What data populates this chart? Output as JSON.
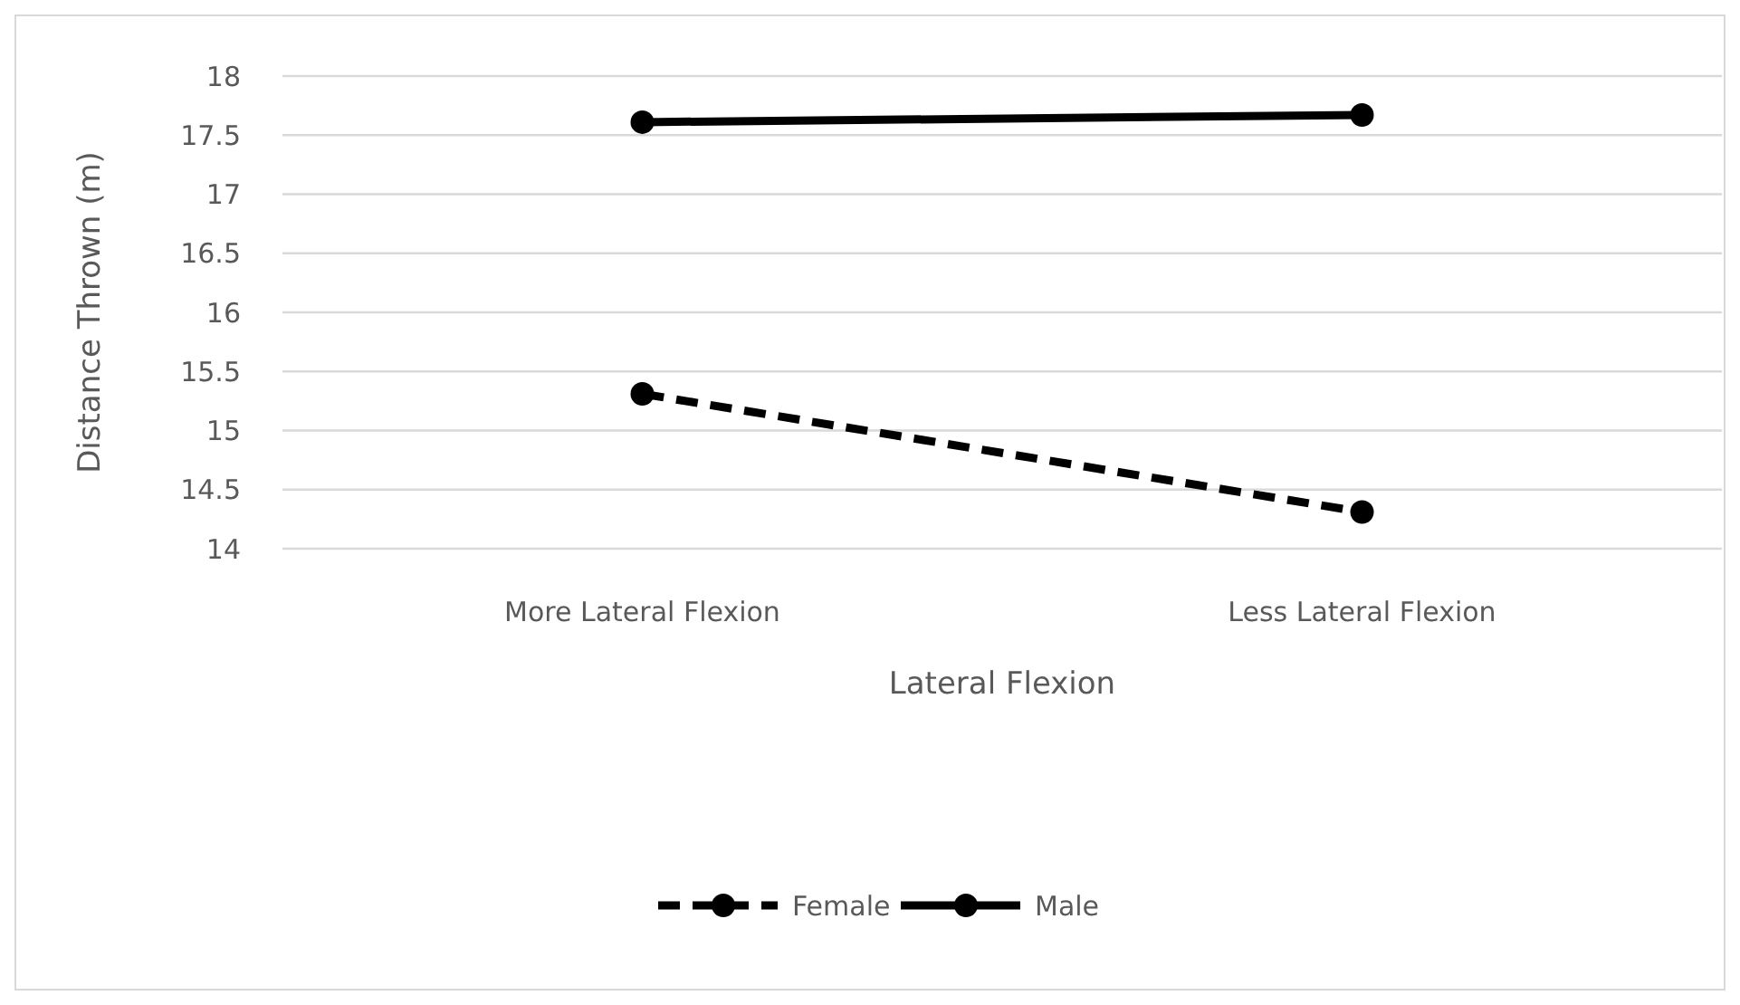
{
  "chart_data": {
    "type": "line",
    "xlabel": "Lateral Flexion",
    "ylabel": "Distance Thrown (m)",
    "categories": [
      "More Lateral Flexion",
      "Less Lateral Flexion"
    ],
    "series": [
      {
        "name": "Female",
        "color": "#000000",
        "values": [
          15.31,
          14.31
        ],
        "line_style": "dashed"
      },
      {
        "name": "Male",
        "color": "#000000",
        "values": [
          17.61,
          17.67
        ],
        "line_style": "solid"
      }
    ],
    "ylim": [
      14,
      18
    ],
    "yticks": [
      14,
      14.5,
      15,
      15.5,
      16,
      16.5,
      17,
      17.5,
      18
    ],
    "grid": "y",
    "legend": "bottom",
    "marker": "circle"
  }
}
